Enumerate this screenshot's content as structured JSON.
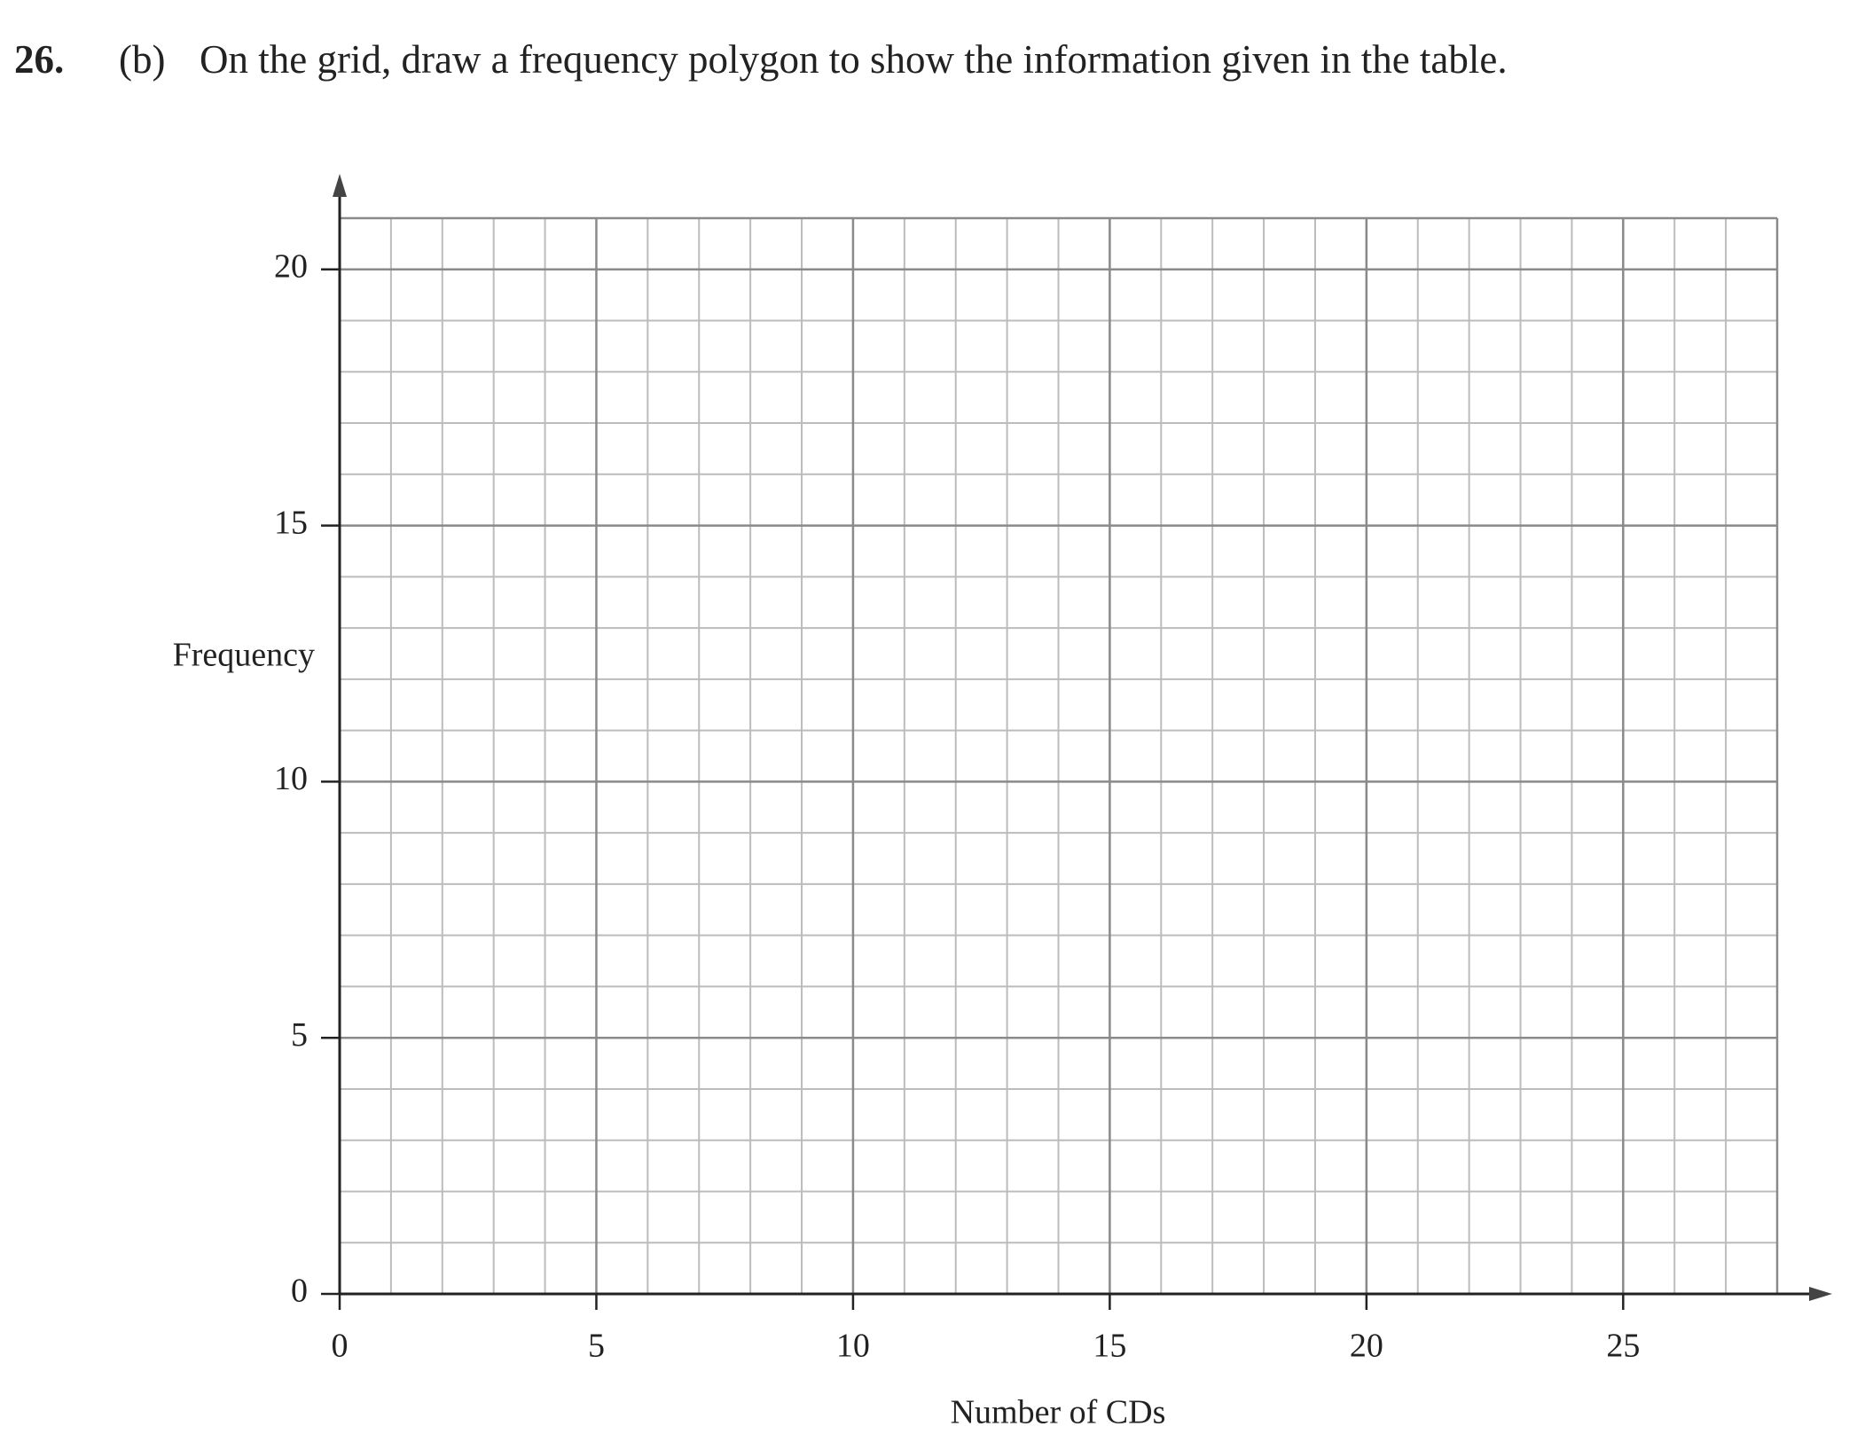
{
  "question": {
    "number": "26.",
    "part": "(b)",
    "text": "On the grid, draw a frequency polygon to show the information given in the table."
  },
  "chart_data": {
    "type": "line",
    "x_label": "Number of CDs",
    "y_label": "Frequency",
    "xlim": [
      0,
      28
    ],
    "ylim": [
      0,
      21
    ],
    "xticks": [
      0,
      5,
      10,
      15,
      20,
      25
    ],
    "yticks": [
      0,
      5,
      10,
      15,
      20
    ],
    "grid": true,
    "minor_grid_step": 1
  }
}
